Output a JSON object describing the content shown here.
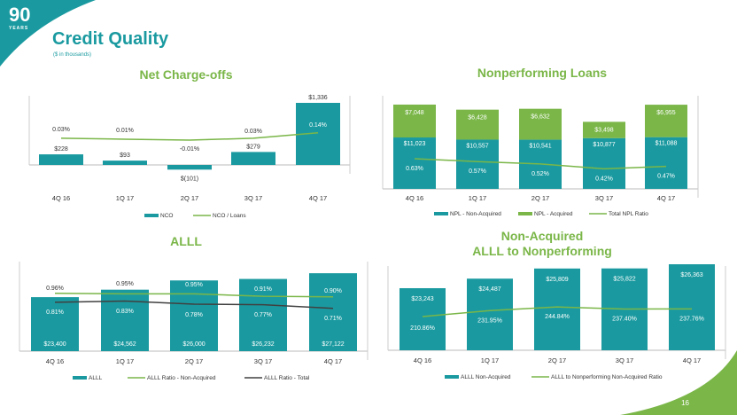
{
  "header": {
    "title": "Credit Quality",
    "subtitle": "($ in thousands)",
    "logo_number": "90",
    "logo_word": "YEARS",
    "page_number": "16"
  },
  "colors": {
    "teal": "#1a9aa0",
    "green": "#7ab648",
    "dark": "#404040"
  },
  "chart_data": [
    {
      "type": "bar",
      "title": "Net Charge-offs",
      "categories": [
        "4Q 16",
        "1Q 17",
        "2Q 17",
        "3Q 17",
        "4Q 17"
      ],
      "series": [
        {
          "name": "NCO",
          "kind": "bar",
          "values": [
            228,
            93,
            -101,
            279,
            1336
          ],
          "labels": [
            "$228",
            "$93",
            "$(101)",
            "$279",
            "$1,336"
          ]
        },
        {
          "name": "NCO / Loans",
          "kind": "line",
          "values": [
            0.03,
            0.01,
            -0.01,
            0.03,
            0.14
          ],
          "labels": [
            "0.03%",
            "0.01%",
            "-0.01%",
            "0.03%",
            "0.14%"
          ]
        }
      ],
      "legend": "bottom"
    },
    {
      "type": "bar",
      "title": "Nonperforming Loans",
      "stacked": true,
      "categories": [
        "4Q 16",
        "1Q 17",
        "2Q 17",
        "3Q 17",
        "4Q 17"
      ],
      "series": [
        {
          "name": "NPL - Non-Acquired",
          "kind": "bar",
          "values": [
            11023,
            10557,
            10541,
            10877,
            11088
          ],
          "labels": [
            "$11,023",
            "$10,557",
            "$10,541",
            "$10,877",
            "$11,088"
          ]
        },
        {
          "name": "NPL - Acquired",
          "kind": "bar",
          "values": [
            7048,
            6428,
            6632,
            3498,
            6955
          ],
          "labels": [
            "$7,048",
            "$6,428",
            "$6,632",
            "$3,498",
            "$6,955"
          ]
        },
        {
          "name": "Total NPL Ratio",
          "kind": "line",
          "values": [
            0.63,
            0.57,
            0.52,
            0.42,
            0.47
          ],
          "labels": [
            "0.63%",
            "0.57%",
            "0.52%",
            "0.42%",
            "0.47%"
          ]
        }
      ],
      "legend": "bottom"
    },
    {
      "type": "bar",
      "title": "ALLL",
      "categories": [
        "4Q 16",
        "1Q 17",
        "2Q 17",
        "3Q 17",
        "4Q 17"
      ],
      "series": [
        {
          "name": "ALLL",
          "kind": "bar",
          "values": [
            23400,
            24562,
            26000,
            26232,
            27122
          ],
          "labels": [
            "$23,400",
            "$24,562",
            "$26,000",
            "$26,232",
            "$27,122"
          ]
        },
        {
          "name": "ALLL Ratio - Non-Acquired",
          "kind": "line",
          "values": [
            0.96,
            0.95,
            0.95,
            0.91,
            0.9
          ],
          "labels": [
            "0.96%",
            "0.95%",
            "0.95%",
            "0.91%",
            "0.90%"
          ]
        },
        {
          "name": "ALLL Ratio - Total",
          "kind": "line",
          "values": [
            0.81,
            0.83,
            0.78,
            0.77,
            0.71
          ],
          "labels": [
            "0.81%",
            "0.83%",
            "0.78%",
            "0.77%",
            "0.71%"
          ]
        }
      ],
      "legend": "bottom"
    },
    {
      "type": "bar",
      "title": "Non-Acquired ALLL to Nonperforming",
      "title_lines": [
        "Non-Acquired",
        "ALLL to Nonperforming"
      ],
      "categories": [
        "4Q 16",
        "1Q 17",
        "2Q 17",
        "3Q 17",
        "4Q 17"
      ],
      "series": [
        {
          "name": "ALLL Non-Acquired",
          "kind": "bar",
          "values": [
            23243,
            24487,
            25809,
            25822,
            26363
          ],
          "labels": [
            "$23,243",
            "$24,487",
            "$25,809",
            "$25,822",
            "$26,363"
          ]
        },
        {
          "name": "ALLL to Nonperforming Non-Acquired Ratio",
          "kind": "line",
          "values": [
            210.86,
            231.95,
            244.84,
            237.4,
            237.76
          ],
          "labels": [
            "210.86%",
            "231.95%",
            "244.84%",
            "237.40%",
            "237.76%"
          ]
        }
      ],
      "legend": "bottom"
    }
  ]
}
